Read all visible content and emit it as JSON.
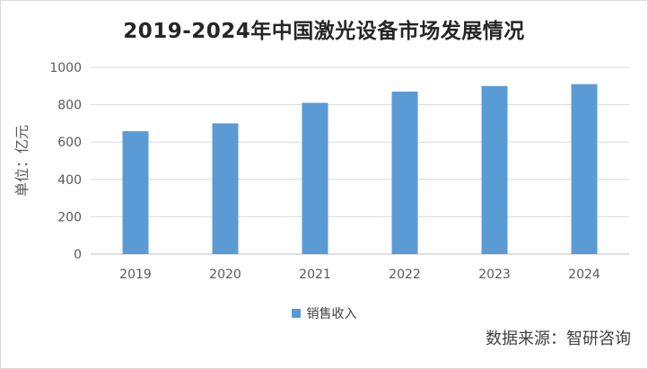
{
  "chart_data": {
    "type": "bar",
    "title": "2019-2024年中国激光设备市场发展情况",
    "ylabel": "单位：亿元",
    "xlabel": "",
    "categories": [
      "2019",
      "2020",
      "2021",
      "2022",
      "2023",
      "2024"
    ],
    "series": [
      {
        "name": "销售收入",
        "values": [
          658,
          700,
          810,
          870,
          900,
          910
        ],
        "color": "#5b9bd5"
      }
    ],
    "ylim": [
      0,
      1000
    ],
    "yticks": [
      0,
      200,
      400,
      600,
      800,
      1000
    ],
    "grid": true,
    "legend_position": "bottom"
  },
  "source_note": "数据来源：智研咨询"
}
